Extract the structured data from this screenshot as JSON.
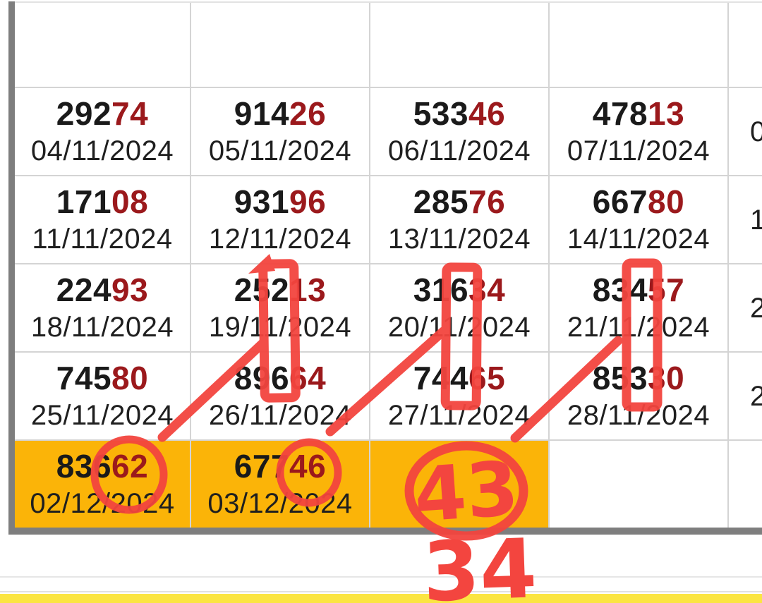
{
  "colors": {
    "highlight_orange": "#fbb408",
    "annotation_red": "#f3453f",
    "number_prefix_black": "#1a1a1a",
    "number_suffix_maroon": "#9b191c",
    "grid_line": "#d4d4d4",
    "frame_gray": "#7e7e7e",
    "yellow_strip": "#fbe542"
  },
  "table": {
    "note": "6 rows x 5 columns; first row empty; fifth column clipped at screen edge showing only first date digit",
    "rows": [
      {
        "cells": [
          {},
          {},
          {},
          {},
          {}
        ]
      },
      {
        "cells": [
          {
            "black": "292",
            "red": "74",
            "date": "04/11/2024"
          },
          {
            "black": "914",
            "red": "26",
            "date": "05/11/2024"
          },
          {
            "black": "533",
            "red": "46",
            "date": "06/11/2024"
          },
          {
            "black": "478",
            "red": "13",
            "date": "07/11/2024"
          },
          {
            "date": "0",
            "clipped": true
          }
        ]
      },
      {
        "cells": [
          {
            "black": "171",
            "red": "08",
            "date": "11/11/2024"
          },
          {
            "black": "931",
            "red": "96",
            "date": "12/11/2024"
          },
          {
            "black": "285",
            "red": "76",
            "date": "13/11/2024"
          },
          {
            "black": "667",
            "red": "80",
            "date": "14/11/2024"
          },
          {
            "date": "1",
            "clipped": true
          }
        ]
      },
      {
        "cells": [
          {
            "black": "224",
            "red": "93",
            "date": "18/11/2024"
          },
          {
            "black": "252",
            "red": "13",
            "date": "19/11/2024"
          },
          {
            "black": "316",
            "red": "34",
            "date": "20/11/2024"
          },
          {
            "black": "834",
            "red": "57",
            "date": "21/11/2024"
          },
          {
            "date": "2",
            "clipped": true
          }
        ]
      },
      {
        "cells": [
          {
            "black": "745",
            "red": "80",
            "date": "25/11/2024"
          },
          {
            "black": "896",
            "red": "64",
            "date": "26/11/2024"
          },
          {
            "black": "744",
            "red": "65",
            "date": "27/11/2024"
          },
          {
            "black": "853",
            "red": "30",
            "date": "28/11/2024"
          },
          {
            "date": "2",
            "clipped": true
          }
        ]
      },
      {
        "cells": [
          {
            "black": "836",
            "red": "62",
            "date": "02/12/2024",
            "highlight": true
          },
          {
            "black": "677",
            "red": "46",
            "date": "03/12/2024",
            "highlight": true
          },
          {
            "highlight": true
          },
          {},
          {}
        ]
      }
    ]
  },
  "annotations": {
    "circled_number": "43",
    "bottom_number": "34"
  }
}
